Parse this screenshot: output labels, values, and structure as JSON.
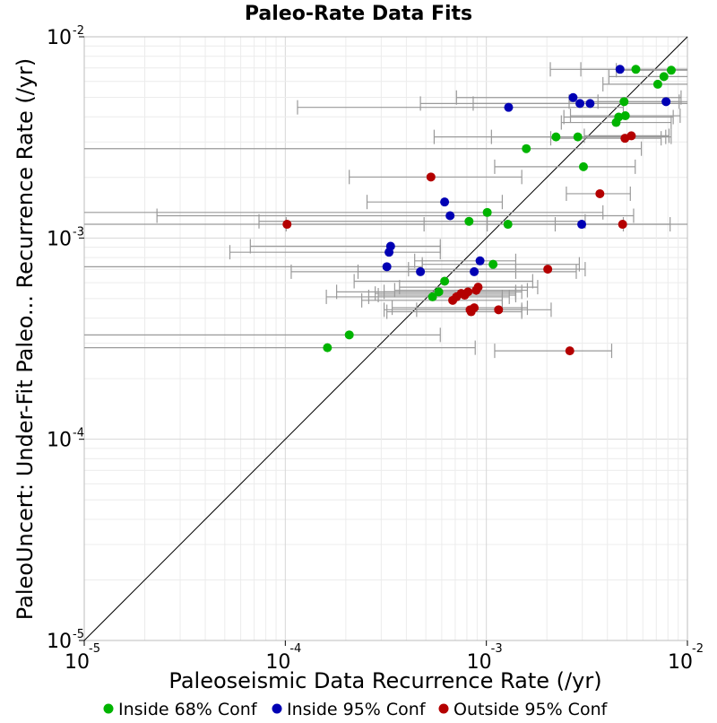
{
  "chart_data": {
    "type": "scatter",
    "title": "Paleo-Rate Data Fits",
    "xlabel": "Paleoseismic Data Recurrence Rate (/yr)",
    "ylabel": "PaleoUncert: Under-Fit Paleo... Recurrence Rate (/yr)",
    "xscale": "log",
    "yscale": "log",
    "xlim": [
      1e-05,
      0.01
    ],
    "ylim": [
      1e-05,
      0.01
    ],
    "x_ticks": [
      {
        "value": 1e-05,
        "base": "10",
        "exp": "-5"
      },
      {
        "value": 0.0001,
        "base": "10",
        "exp": "-4"
      },
      {
        "value": 0.001,
        "base": "10",
        "exp": "-3"
      },
      {
        "value": 0.01,
        "base": "10",
        "exp": "-2"
      }
    ],
    "y_ticks": [
      {
        "value": 1e-05,
        "base": "10",
        "exp": "-5"
      },
      {
        "value": 0.0001,
        "base": "10",
        "exp": "-4"
      },
      {
        "value": 0.001,
        "base": "10",
        "exp": "-3"
      },
      {
        "value": 0.01,
        "base": "10",
        "exp": "-2"
      }
    ],
    "reference_line": "y = x",
    "grid": true,
    "legend_position": "bottom",
    "series": [
      {
        "name": "Inside 68% Conf",
        "color": "#00b400",
        "points": [
          {
            "x": 0.00554,
            "y": 0.00689,
            "lo": 0.00295,
            "hi": 0.0105
          },
          {
            "x": 0.00831,
            "y": 0.00682,
            "lo": 0.00443,
            "hi": 0.01
          },
          {
            "x": 0.00764,
            "y": 0.00634,
            "lo": 0.00407,
            "hi": 0.01
          },
          {
            "x": 0.00712,
            "y": 0.00581,
            "lo": 0.0038,
            "hi": 0.01
          },
          {
            "x": 0.00484,
            "y": 0.00476,
            "lo": 0.00258,
            "hi": 0.0091
          },
          {
            "x": 0.00491,
            "y": 0.00405,
            "lo": 0.00262,
            "hi": 0.0092
          },
          {
            "x": 0.00455,
            "y": 0.00399,
            "lo": 0.00243,
            "hi": 0.0085
          },
          {
            "x": 0.00442,
            "y": 0.00375,
            "lo": 0.00236,
            "hi": 0.0083
          },
          {
            "x": 0.00222,
            "y": 0.00318,
            "lo": 0.00055,
            "hi": 0.0083
          },
          {
            "x": 0.00285,
            "y": 0.00318,
            "lo": 0.00106,
            "hi": 0.0078
          },
          {
            "x": 0.00158,
            "y": 0.00278,
            "lo": 1e-05,
            "hi": 0.0059
          },
          {
            "x": 0.00304,
            "y": 0.00226,
            "lo": 0.0011,
            "hi": 0.0055
          },
          {
            "x": 0.00101,
            "y": 0.00134,
            "lo": 7.5e-06,
            "hi": 0.0038
          },
          {
            "x": 0.00082,
            "y": 0.00121,
            "lo": 7.4e-05,
            "hi": 0.0031
          },
          {
            "x": 0.00128,
            "y": 0.00117,
            "lo": 0.000101,
            "hi": 0.0048
          },
          {
            "x": 0.00108,
            "y": 0.00074,
            "lo": 0.00048,
            "hi": 0.0029
          },
          {
            "x": 0.00062,
            "y": 0.00061,
            "lo": 0.00022,
            "hi": 0.0017
          },
          {
            "x": 0.00058,
            "y": 0.00054,
            "lo": 0.00018,
            "hi": 0.0014
          },
          {
            "x": 0.00054,
            "y": 0.00051,
            "lo": 0.00016,
            "hi": 0.0012
          },
          {
            "x": 0.000208,
            "y": 0.00033,
            "lo": 8.5e-06,
            "hi": 0.00059
          },
          {
            "x": 0.000162,
            "y": 0.000285,
            "lo": 9.2e-06,
            "hi": 0.00088
          }
        ]
      },
      {
        "name": "Inside 95% Conf",
        "color": "#0000b4",
        "points": [
          {
            "x": 0.00462,
            "y": 0.00689,
            "lo": 0.00208,
            "hi": 0.0105
          },
          {
            "x": 0.0027,
            "y": 0.00499,
            "lo": 0.00071,
            "hi": 0.0093
          },
          {
            "x": 0.00292,
            "y": 0.00466,
            "lo": 0.00047,
            "hi": 0.01
          },
          {
            "x": 0.00328,
            "y": 0.00466,
            "lo": 0.00086,
            "hi": 0.0102
          },
          {
            "x": 0.00783,
            "y": 0.00476,
            "lo": 0.00359,
            "hi": 0.01
          },
          {
            "x": 0.00129,
            "y": 0.00446,
            "lo": 0.000115,
            "hi": 0.0048
          },
          {
            "x": 0.00062,
            "y": 0.00151,
            "lo": 0.000255,
            "hi": 0.0012
          },
          {
            "x": 0.00066,
            "y": 0.00129,
            "lo": 2.3e-05,
            "hi": 0.0054
          },
          {
            "x": 0.00298,
            "y": 0.00117,
            "lo": 0.00101,
            "hi": 0.0082
          },
          {
            "x": 0.000334,
            "y": 0.00091,
            "lo": 6.7e-05,
            "hi": 0.00059
          },
          {
            "x": 0.000328,
            "y": 0.00085,
            "lo": 5.3e-05,
            "hi": 0.00059
          },
          {
            "x": 0.00032,
            "y": 0.00072,
            "lo": 9.8e-06,
            "hi": 0.00048
          },
          {
            "x": 0.00093,
            "y": 0.00077,
            "lo": 0.00044,
            "hi": 0.0014
          },
          {
            "x": 0.00047,
            "y": 0.00068,
            "lo": 0.000107,
            "hi": 0.0014
          },
          {
            "x": 0.00087,
            "y": 0.00068,
            "lo": 0.00023,
            "hi": 0.0028
          }
        ]
      },
      {
        "name": "Outside 95% Conf",
        "color": "#b40000",
        "points": [
          {
            "x": 0.00526,
            "y": 0.00322,
            "lo": 0.00307,
            "hi": 0.0081
          },
          {
            "x": 0.00489,
            "y": 0.00313,
            "lo": 0.00209,
            "hi": 0.0074
          },
          {
            "x": 0.00053,
            "y": 0.00201,
            "lo": 0.000208,
            "hi": 0.0015
          },
          {
            "x": 0.00367,
            "y": 0.00166,
            "lo": 0.0025,
            "hi": 0.0052
          },
          {
            "x": 0.000102,
            "y": 0.00117,
            "lo": 4.6e-06,
            "hi": 0.00049
          },
          {
            "x": 0.00476,
            "y": 0.00117,
            "lo": 0.0022,
            "hi": 0.0103
          },
          {
            "x": 0.00202,
            "y": 0.0007,
            "lo": 0.00041,
            "hi": 0.0031
          },
          {
            "x": 0.00091,
            "y": 0.00057,
            "lo": 0.00037,
            "hi": 0.0018
          },
          {
            "x": 0.00089,
            "y": 0.00055,
            "lo": 0.00035,
            "hi": 0.0016
          },
          {
            "x": 0.00081,
            "y": 0.00054,
            "lo": 0.00031,
            "hi": 0.0015
          },
          {
            "x": 0.00078,
            "y": 0.00052,
            "lo": 0.00029,
            "hi": 0.0014
          },
          {
            "x": 0.00075,
            "y": 0.00053,
            "lo": 0.00028,
            "hi": 0.0014
          },
          {
            "x": 0.00071,
            "y": 0.00051,
            "lo": 0.00026,
            "hi": 0.0013
          },
          {
            "x": 0.00068,
            "y": 0.00049,
            "lo": 0.00024,
            "hi": 0.0012
          },
          {
            "x": 0.00087,
            "y": 0.00045,
            "lo": 0.00034,
            "hi": 0.0016
          },
          {
            "x": 0.00084,
            "y": 0.00043,
            "lo": 0.00032,
            "hi": 0.0015
          },
          {
            "x": 0.00083,
            "y": 0.00044,
            "lo": 0.00031,
            "hi": 0.0015
          },
          {
            "x": 0.00115,
            "y": 0.00044,
            "lo": 0.00045,
            "hi": 0.0021
          },
          {
            "x": 0.0026,
            "y": 0.000275,
            "lo": 0.0011,
            "hi": 0.0042
          }
        ]
      }
    ]
  }
}
